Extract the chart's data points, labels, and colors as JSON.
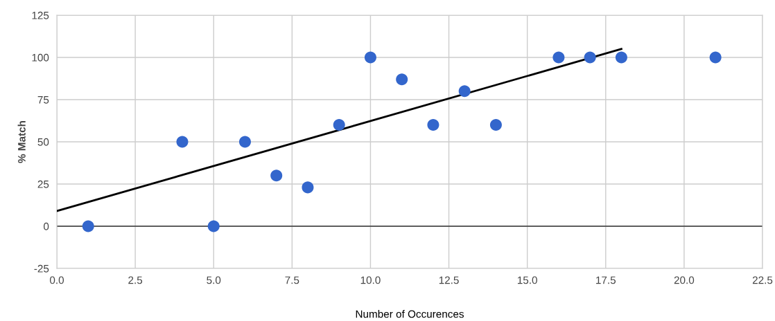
{
  "chart_data": {
    "type": "scatter",
    "xlabel": "Number of Occurences",
    "ylabel": "% Match",
    "series": [
      {
        "color": "#3366cc",
        "marker": "circle",
        "x": [
          1,
          4,
          5,
          6,
          7,
          8,
          9,
          10,
          11,
          12,
          13,
          14,
          16,
          17,
          18,
          21
        ],
        "values": [
          0,
          50,
          0,
          50,
          30,
          23,
          60,
          100,
          87,
          60,
          80,
          60,
          100,
          100,
          100,
          100
        ]
      },
      {
        "type": "line",
        "marker": "none",
        "color": "#000000",
        "x": [
          0,
          18
        ],
        "values": [
          9,
          105
        ]
      }
    ],
    "xlim": [
      0,
      22.5
    ],
    "xticks": [
      {
        "value": 0,
        "label": "0.0"
      },
      {
        "value": 2.5,
        "label": "2.5"
      },
      {
        "value": 5,
        "label": "5.0"
      },
      {
        "value": 7.5,
        "label": "7.5"
      },
      {
        "value": 10,
        "label": "10.0"
      },
      {
        "value": 12.5,
        "label": "12.5"
      },
      {
        "value": 15,
        "label": "15.0"
      },
      {
        "value": 17.5,
        "label": "17.5"
      },
      {
        "value": 20,
        "label": "20.0"
      },
      {
        "value": 22.5,
        "label": "22.5"
      }
    ],
    "ylim": [
      -25,
      125
    ],
    "yticks": [
      -25,
      0,
      25,
      50,
      75,
      100,
      125
    ],
    "ref_lines": [
      {
        "axis": "y",
        "value": 0,
        "color": "#333333"
      }
    ],
    "grid": true,
    "line_style": "solid"
  }
}
